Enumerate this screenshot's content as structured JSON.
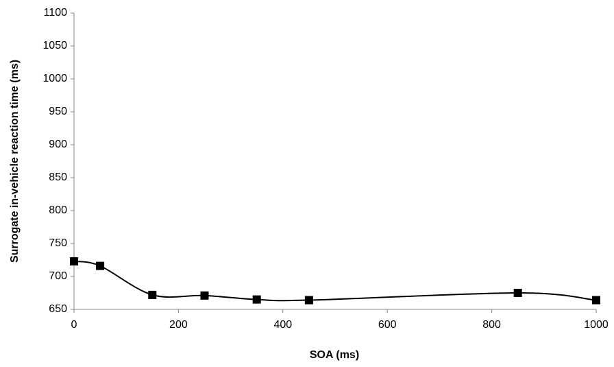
{
  "chart_data": {
    "type": "line",
    "x_label": "SOA (ms)",
    "y_label": "Surrogate in-vehicle reaction time (ms)",
    "x": [
      0,
      50,
      150,
      250,
      350,
      450,
      850,
      1000
    ],
    "values": [
      723,
      716,
      672,
      671,
      665,
      664,
      675,
      664
    ],
    "color": "#000000",
    "marker": "square",
    "smooth": true,
    "xlim": [
      0,
      1000
    ],
    "xticks": [
      0,
      200,
      400,
      600,
      800,
      1000
    ],
    "ylim": [
      650,
      1100
    ],
    "yticks": [
      650,
      700,
      750,
      800,
      850,
      900,
      950,
      1000,
      1050,
      1100
    ],
    "grid": false
  }
}
